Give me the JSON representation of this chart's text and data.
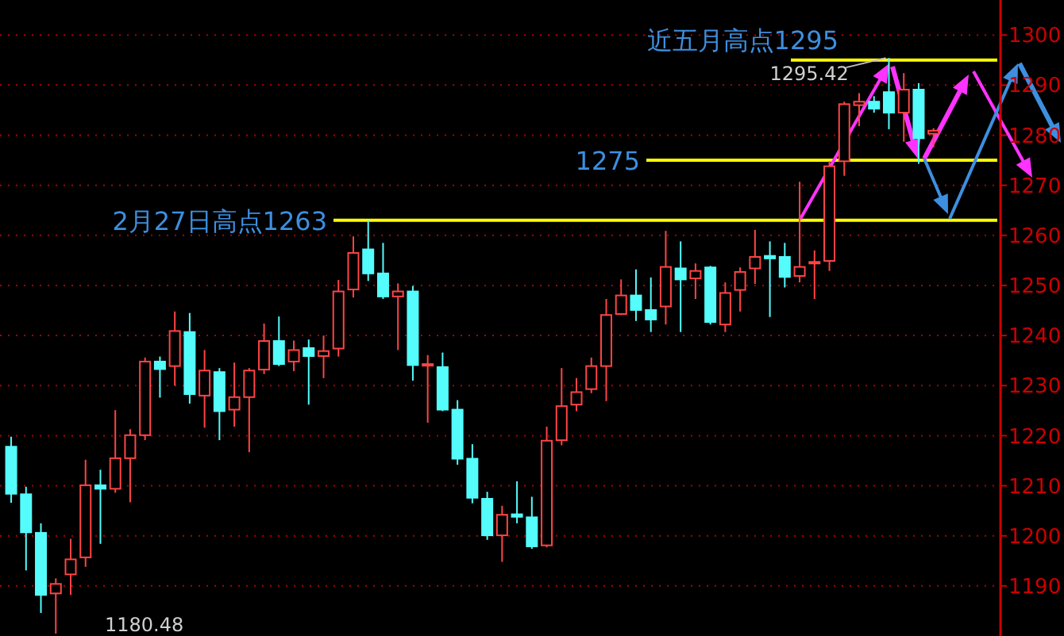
{
  "chart_data": {
    "type": "candlestick",
    "categories": [
      null,
      null,
      null,
      null,
      null,
      null,
      null,
      null,
      null,
      null,
      null,
      null,
      null,
      null,
      null,
      null,
      null,
      null,
      null,
      null,
      null,
      null,
      null,
      null,
      null,
      null,
      null,
      null,
      null,
      null,
      null,
      null,
      null,
      null,
      null,
      null,
      null,
      null,
      null,
      null,
      null,
      null,
      null,
      null,
      null,
      null,
      null,
      null,
      null,
      null,
      null,
      null,
      null,
      null,
      null,
      null,
      null,
      null,
      null,
      null,
      null,
      null,
      null
    ],
    "ohlc": [
      [
        1217.8,
        1219.8,
        1206.6,
        1208.4
      ],
      [
        1208.3,
        1209.8,
        1193.1,
        1200.7
      ],
      [
        1200.6,
        1202.5,
        1184.6,
        1188.2
      ],
      [
        1188.5,
        1191.5,
        1180.48,
        1190.4
      ],
      [
        1192.3,
        1199.4,
        1188.2,
        1195.3
      ],
      [
        1195.7,
        1215.2,
        1193.8,
        1210.1
      ],
      [
        1210.1,
        1213.2,
        1198.4,
        1209.4
      ],
      [
        1209.4,
        1225.1,
        1208.6,
        1215.5
      ],
      [
        1215.5,
        1221.3,
        1206.7,
        1220.1
      ],
      [
        1220.1,
        1235.6,
        1219.1,
        1234.8
      ],
      [
        1234.8,
        1235.8,
        1227.6,
        1233.3
      ],
      [
        1233.9,
        1244.8,
        1230.0,
        1240.9
      ],
      [
        1240.7,
        1244.5,
        1226.4,
        1228.3
      ],
      [
        1228.0,
        1237.1,
        1221.6,
        1233.0
      ],
      [
        1232.7,
        1233.5,
        1219.1,
        1224.9
      ],
      [
        1225.2,
        1234.6,
        1221.8,
        1227.7
      ],
      [
        1227.7,
        1233.5,
        1216.7,
        1233.0
      ],
      [
        1233.2,
        1242.4,
        1232.3,
        1238.9
      ],
      [
        1238.9,
        1243.8,
        1233.9,
        1234.3
      ],
      [
        1234.8,
        1239.0,
        1232.9,
        1237.1
      ],
      [
        1237.5,
        1239.2,
        1226.2,
        1235.9
      ],
      [
        1235.9,
        1240.0,
        1231.5,
        1236.9
      ],
      [
        1237.4,
        1251.1,
        1235.8,
        1248.8
      ],
      [
        1249.2,
        1259.8,
        1247.6,
        1256.5
      ],
      [
        1257.2,
        1263,
        1250.9,
        1252.4
      ],
      [
        1252.4,
        1258.5,
        1247.3,
        1247.8
      ],
      [
        1247.8,
        1250.4,
        1237.1,
        1248.8
      ],
      [
        1248.8,
        1249.9,
        1231.0,
        1234.1
      ],
      [
        1234.1,
        1236.1,
        1222.6,
        1234.3
      ],
      [
        1233.7,
        1236.6,
        1224.9,
        1225.2
      ],
      [
        1225.2,
        1227.1,
        1214.2,
        1215.4
      ],
      [
        1215.4,
        1218.3,
        1206.5,
        1207.6
      ],
      [
        1207.4,
        1208.8,
        1199.2,
        1200.1
      ],
      [
        1200.1,
        1206.0,
        1194.8,
        1204.2
      ],
      [
        1204.3,
        1210.9,
        1202.5,
        1203.8
      ],
      [
        1203.7,
        1207.8,
        1197.4,
        1197.9
      ],
      [
        1198.1,
        1221.8,
        1197.7,
        1219.0
      ],
      [
        1219.1,
        1233.5,
        1218.1,
        1225.9
      ],
      [
        1226.2,
        1231.5,
        1224.9,
        1228.7
      ],
      [
        1229.3,
        1235.6,
        1228.5,
        1233.9
      ],
      [
        1233.9,
        1247.3,
        1226.9,
        1244.1
      ],
      [
        1244.3,
        1251.2,
        1244.1,
        1248.0
      ],
      [
        1248.0,
        1253.2,
        1242.9,
        1245.1
      ],
      [
        1245.1,
        1251.6,
        1240.7,
        1243.2
      ],
      [
        1245.8,
        1260.9,
        1242.2,
        1253.7
      ],
      [
        1253.4,
        1258.8,
        1240.7,
        1251.2
      ],
      [
        1251.4,
        1254.4,
        1247.3,
        1252.9
      ],
      [
        1253.6,
        1253.9,
        1242.2,
        1242.7
      ],
      [
        1242.2,
        1250.6,
        1240.7,
        1248.5
      ],
      [
        1249.1,
        1253.6,
        1244.8,
        1252.7
      ],
      [
        1253.4,
        1261.1,
        1250.3,
        1255.7
      ],
      [
        1255.9,
        1258.8,
        1243.7,
        1255.4
      ],
      [
        1255.7,
        1258.5,
        1249.6,
        1251.7
      ],
      [
        1251.9,
        1270.7,
        1250.6,
        1253.7
      ],
      [
        1254.4,
        1257.0,
        1247.3,
        1254.7
      ],
      [
        1254.9,
        1274.8,
        1252.9,
        1273.8
      ],
      [
        1274.8,
        1286.7,
        1271.9,
        1286.2
      ],
      [
        1286.0,
        1288.4,
        1281.8,
        1286.7
      ],
      [
        1286.7,
        1287.8,
        1284.5,
        1285.3
      ],
      [
        1288.6,
        1295.42,
        1281.2,
        1284.5
      ],
      [
        1284.5,
        1292.4,
        1278.7,
        1289.1
      ],
      [
        1289.1,
        1290.4,
        1274.3,
        1279.4
      ],
      [
        1280.3,
        1281.4,
        1277.6,
        1280.9
      ]
    ],
    "colors": [
      "#54fcfc",
      "#54fcfc",
      "#54fcfc",
      "#ff4444",
      "#ff4444",
      "#ff4444",
      "#54fcfc",
      "#ff4444",
      "#ff4444",
      "#ff4444",
      "#54fcfc",
      "#ff4444",
      "#54fcfc",
      "#ff4444",
      "#54fcfc",
      "#ff4444",
      "#ff4444",
      "#ff4444",
      "#54fcfc",
      "#ff4444",
      "#54fcfc",
      "#ff4444",
      "#ff4444",
      "#ff4444",
      "#54fcfc",
      "#54fcfc",
      "#ff4444",
      "#54fcfc",
      "#ff4444",
      "#54fcfc",
      "#54fcfc",
      "#54fcfc",
      "#54fcfc",
      "#ff4444",
      "#54fcfc",
      "#54fcfc",
      "#ff4444",
      "#ff4444",
      "#ff4444",
      "#ff4444",
      "#ff4444",
      "#ff4444",
      "#54fcfc",
      "#54fcfc",
      "#ff4444",
      "#54fcfc",
      "#ff4444",
      "#54fcfc",
      "#ff4444",
      "#ff4444",
      "#ff4444",
      "#54fcfc",
      "#54fcfc",
      "#ff4444",
      "#ff4444",
      "#ff4444",
      "#ff4444",
      "#ff4444",
      "#54fcfc",
      "#54fcfc",
      "#ff4444",
      "#54fcfc",
      "#ff4444"
    ],
    "ylim": [
      1180,
      1307
    ],
    "yticks": [
      1190,
      1200,
      1210,
      1220,
      1230,
      1240,
      1250,
      1260,
      1270,
      1280,
      1290,
      1300
    ],
    "grid": "y",
    "tick_labels": "y",
    "ref_lines": [
      {
        "axis": "y",
        "value": 1295,
        "label": "近五月高点1295",
        "color": "#ffff00"
      },
      {
        "axis": "y",
        "value": 1275,
        "label": "1275",
        "color": "#ffff00"
      },
      {
        "axis": "y",
        "value": 1263,
        "label": "2月27日高点1263",
        "color": "#ffff00"
      }
    ],
    "annotations": [
      {
        "text": "1295.42",
        "y": 1295.42
      },
      "1180.48"
    ]
  }
}
